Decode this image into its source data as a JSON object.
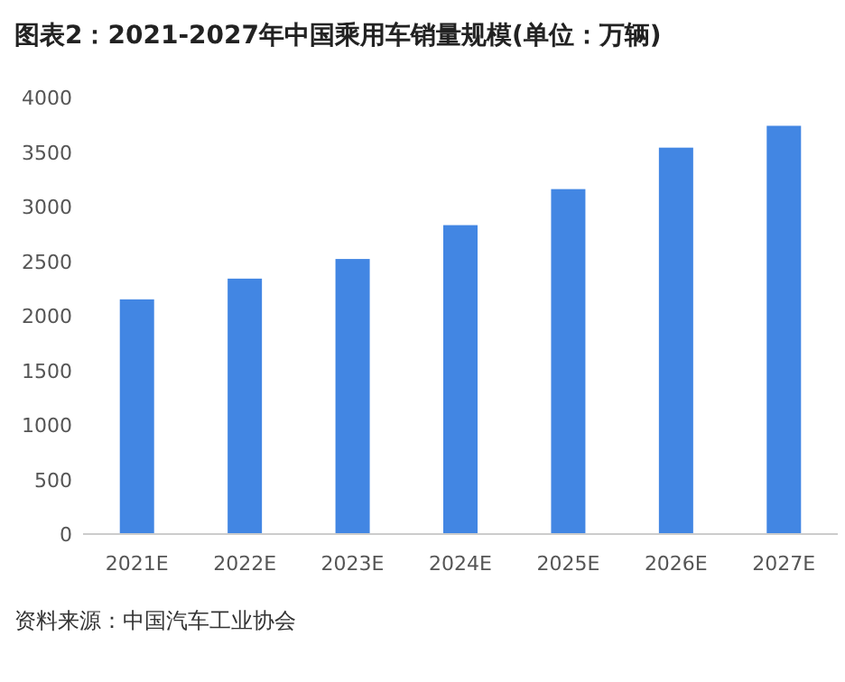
{
  "chart_data": {
    "type": "bar",
    "title": "图表2：2021-2027年中国乘用车销量规模(单位：万辆)",
    "categories": [
      "2021E",
      "2022E",
      "2023E",
      "2024E",
      "2025E",
      "2026E",
      "2027E"
    ],
    "values": [
      2150,
      2340,
      2520,
      2830,
      3160,
      3540,
      3740
    ],
    "color": "#4286e3",
    "ylim": [
      0,
      4000
    ],
    "yticks": [
      0,
      500,
      1000,
      1500,
      2000,
      2500,
      3000,
      3500,
      4000
    ],
    "grid": false,
    "annotations": [
      "资料来源：中国汽车工业协会"
    ]
  }
}
